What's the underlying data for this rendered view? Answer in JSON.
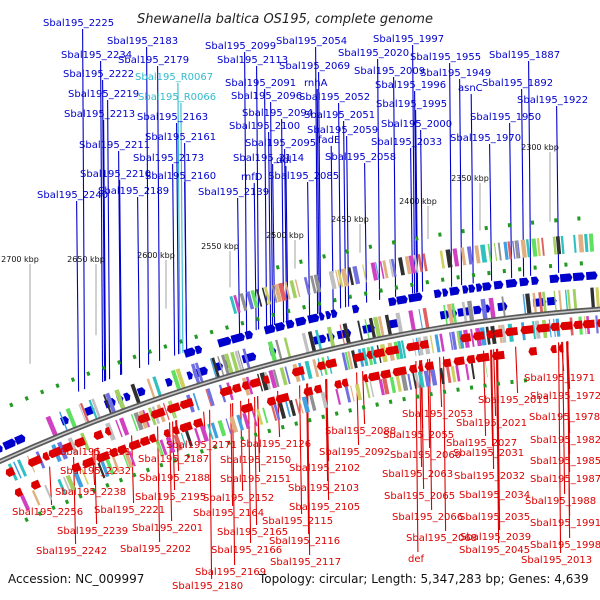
{
  "title": "Shewanella baltica OS195, complete genome",
  "footer": {
    "accession": "Accession: NC_009997",
    "topology": "Topology: circular; Length: 5,347,283 bp; Genes: 4,639"
  },
  "colors": {
    "forward": "#0000cc",
    "reverse": "#dd0000",
    "rna": "#33bbcc",
    "backbone": "#8a8a8a",
    "tick": "#229922"
  },
  "scale_labels": [
    "2300 kbp",
    "2350 kbp",
    "2400 kbp",
    "2450 kbp",
    "2500 kbp",
    "2550 kbp",
    "2600 kbp",
    "2650 kbp",
    "2700 kbp"
  ],
  "top_labels": [
    {
      "t": "Sbal195_2225",
      "type": "forward"
    },
    {
      "t": "Sbal195_2234",
      "type": "forward"
    },
    {
      "t": "Sbal195_2183",
      "type": "forward"
    },
    {
      "t": "Sbal195_2222",
      "type": "forward"
    },
    {
      "t": "Sbal195_2179",
      "type": "forward"
    },
    {
      "t": "Sbal195_R0067",
      "type": "rna"
    },
    {
      "t": "Sbal195_2219",
      "type": "forward"
    },
    {
      "t": "Sbal195_R0066",
      "type": "rna"
    },
    {
      "t": "Sbal195_2213",
      "type": "forward"
    },
    {
      "t": "Sbal195_2163",
      "type": "forward"
    },
    {
      "t": "Sbal195_2211",
      "type": "forward"
    },
    {
      "t": "Sbal195_2161",
      "type": "forward"
    },
    {
      "t": "Sbal195_2173",
      "type": "forward"
    },
    {
      "t": "Sbal195_2210",
      "type": "forward"
    },
    {
      "t": "Sbal195_2160",
      "type": "forward"
    },
    {
      "t": "Sbal195_2189",
      "type": "forward"
    },
    {
      "t": "Sbal195_2240",
      "type": "forward"
    },
    {
      "t": "Sbal195_2139",
      "type": "forward"
    },
    {
      "t": "Sbal195_2099",
      "type": "forward"
    },
    {
      "t": "Sbal195_2113",
      "type": "forward"
    },
    {
      "t": "Sbal195_2091",
      "type": "forward"
    },
    {
      "t": "Sbal195_2096",
      "type": "forward"
    },
    {
      "t": "Sbal195_2094",
      "type": "forward"
    },
    {
      "t": "Sbal195_2100",
      "type": "forward"
    },
    {
      "t": "Sbal195_2095",
      "type": "forward"
    },
    {
      "t": "Sbal195_2114",
      "type": "forward"
    },
    {
      "t": "rnfD",
      "type": "forward"
    },
    {
      "t": "ddl",
      "type": "forward"
    },
    {
      "t": "Sbal195_2085",
      "type": "forward"
    },
    {
      "t": "Sbal195_2054",
      "type": "forward"
    },
    {
      "t": "Sbal195_2069",
      "type": "forward"
    },
    {
      "t": "rnhA",
      "type": "forward"
    },
    {
      "t": "Sbal195_2052",
      "type": "forward"
    },
    {
      "t": "Sbal195_2051",
      "type": "forward"
    },
    {
      "t": "Sbal195_2059",
      "type": "forward"
    },
    {
      "t": "fadE",
      "type": "forward"
    },
    {
      "t": "Sbal195_2058",
      "type": "forward"
    },
    {
      "t": "Sbal195_1997",
      "type": "forward"
    },
    {
      "t": "Sbal195_2020",
      "type": "forward"
    },
    {
      "t": "Sbal195_2009",
      "type": "forward"
    },
    {
      "t": "Sbal195_1996",
      "type": "forward"
    },
    {
      "t": "Sbal195_1995",
      "type": "forward"
    },
    {
      "t": "Sbal195_2000",
      "type": "forward"
    },
    {
      "t": "Sbal195_2033",
      "type": "forward"
    },
    {
      "t": "Sbal195_1955",
      "type": "forward"
    },
    {
      "t": "Sbal195_1949",
      "type": "forward"
    },
    {
      "t": "asnC",
      "type": "forward"
    },
    {
      "t": "Sbal195_1950",
      "type": "forward"
    },
    {
      "t": "Sbal195_1970",
      "type": "forward"
    },
    {
      "t": "Sbal195_1887",
      "type": "forward"
    },
    {
      "t": "Sbal195_1892",
      "type": "forward"
    },
    {
      "t": "Sbal195_1922",
      "type": "forward"
    }
  ],
  "bottom_labels": [
    {
      "t": "Sbal195_1971",
      "type": "reverse"
    },
    {
      "t": "Sbal195_1972",
      "type": "reverse"
    },
    {
      "t": "Sbal195_2015",
      "type": "reverse"
    },
    {
      "t": "Sbal195_1978",
      "type": "reverse"
    },
    {
      "t": "Sbal195_2053",
      "type": "reverse"
    },
    {
      "t": "Sbal195_2021",
      "type": "reverse"
    },
    {
      "t": "Sbal195_2088",
      "type": "reverse"
    },
    {
      "t": "Sbal195_2055",
      "type": "reverse"
    },
    {
      "t": "Sbal195_2027",
      "type": "reverse"
    },
    {
      "t": "Sbal195_1982",
      "type": "reverse"
    },
    {
      "t": "Sbal195_2126",
      "type": "reverse"
    },
    {
      "t": "Sbal195_2092",
      "type": "reverse"
    },
    {
      "t": "Sbal195_2060",
      "type": "reverse"
    },
    {
      "t": "Sbal195_2031",
      "type": "reverse"
    },
    {
      "t": "Sbal195_1985",
      "type": "reverse"
    },
    {
      "t": "Sbal195_2231",
      "type": "reverse"
    },
    {
      "t": "Sbal195_2171",
      "type": "reverse"
    },
    {
      "t": "Sbal195_2187",
      "type": "reverse"
    },
    {
      "t": "Sbal195_2150",
      "type": "reverse"
    },
    {
      "t": "Sbal195_2102",
      "type": "reverse"
    },
    {
      "t": "Sbal195_2063",
      "type": "reverse"
    },
    {
      "t": "Sbal195_2032",
      "type": "reverse"
    },
    {
      "t": "Sbal195_1987",
      "type": "reverse"
    },
    {
      "t": "Sbal195_2232",
      "type": "reverse"
    },
    {
      "t": "Sbal195_2188",
      "type": "reverse"
    },
    {
      "t": "Sbal195_2151",
      "type": "reverse"
    },
    {
      "t": "Sbal195_2103",
      "type": "reverse"
    },
    {
      "t": "Sbal195_2065",
      "type": "reverse"
    },
    {
      "t": "Sbal195_2034",
      "type": "reverse"
    },
    {
      "t": "Sbal195_1988",
      "type": "reverse"
    },
    {
      "t": "Sbal195_2238",
      "type": "reverse"
    },
    {
      "t": "Sbal195_2195",
      "type": "reverse"
    },
    {
      "t": "Sbal195_2152",
      "type": "reverse"
    },
    {
      "t": "Sbal195_2256",
      "type": "reverse"
    },
    {
      "t": "Sbal195_2221",
      "type": "reverse"
    },
    {
      "t": "Sbal195_2164",
      "type": "reverse"
    },
    {
      "t": "Sbal195_2105",
      "type": "reverse"
    },
    {
      "t": "Sbal195_2066",
      "type": "reverse"
    },
    {
      "t": "Sbal195_2035",
      "type": "reverse"
    },
    {
      "t": "Sbal195_1991",
      "type": "reverse"
    },
    {
      "t": "Sbal195_2201",
      "type": "reverse"
    },
    {
      "t": "Sbal195_2115",
      "type": "reverse"
    },
    {
      "t": "Sbal195_2239",
      "type": "reverse"
    },
    {
      "t": "Sbal195_2165",
      "type": "reverse"
    },
    {
      "t": "Sbal195_2116",
      "type": "reverse"
    },
    {
      "t": "Sbal195_2068",
      "type": "reverse"
    },
    {
      "t": "Sbal195_2039",
      "type": "reverse"
    },
    {
      "t": "Sbal195_1998",
      "type": "reverse"
    },
    {
      "t": "Sbal195_2242",
      "type": "reverse"
    },
    {
      "t": "Sbal195_2202",
      "type": "reverse"
    },
    {
      "t": "Sbal195_2166",
      "type": "reverse"
    },
    {
      "t": "Sbal195_2045",
      "type": "reverse"
    },
    {
      "t": "def",
      "type": "reverse"
    },
    {
      "t": "Sbal195_2117",
      "type": "reverse"
    },
    {
      "t": "Sbal195_2013",
      "type": "reverse"
    },
    {
      "t": "Sbal195_2169",
      "type": "reverse"
    },
    {
      "t": "Sbal195_2180",
      "type": "reverse"
    }
  ]
}
